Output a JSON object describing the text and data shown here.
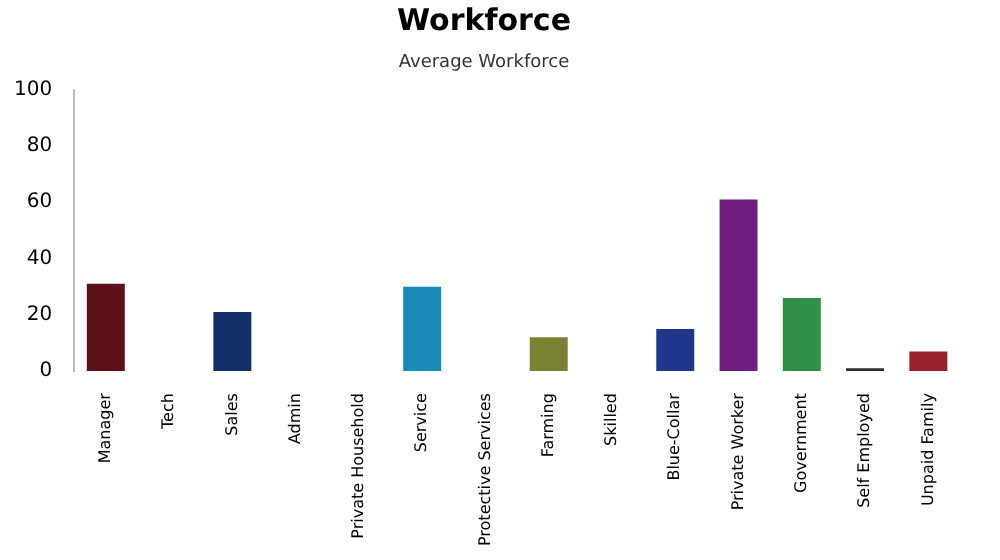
{
  "chart_data": {
    "type": "bar",
    "title": "Workforce",
    "subtitle": "Average Workforce",
    "categories": [
      "Manager",
      "Tech",
      "Sales",
      "Admin",
      "Private Household",
      "Service",
      "Protective Services",
      "Farming",
      "Skilled",
      "Blue-Collar",
      "Private Worker",
      "Government",
      "Self Employed",
      "Unpaid Family"
    ],
    "values": [
      31,
      0,
      21,
      0,
      0,
      30,
      0,
      12,
      0,
      15,
      61,
      26,
      1,
      7
    ],
    "colors": [
      "#5c1018",
      "#444444",
      "#12306a",
      "#444444",
      "#444444",
      "#1a8ab8",
      "#444444",
      "#7a8232",
      "#444444",
      "#20368c",
      "#721e80",
      "#2e9048",
      "#2a2c34",
      "#98202c"
    ],
    "ylim": [
      0,
      100
    ],
    "yticks": [
      0,
      20,
      40,
      60,
      80,
      100
    ],
    "grid": false,
    "legend": false
  }
}
